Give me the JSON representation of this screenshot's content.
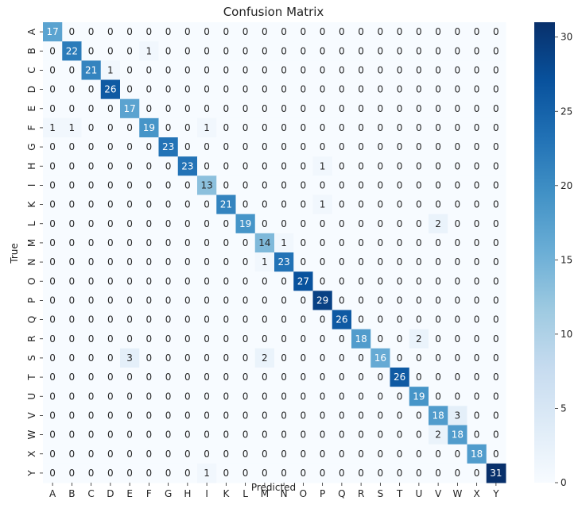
{
  "chart_data": {
    "type": "heatmap",
    "title": "Confusion Matrix",
    "xlabel": "Predicted",
    "ylabel": "True",
    "labels": [
      "A",
      "B",
      "C",
      "D",
      "E",
      "F",
      "G",
      "H",
      "I",
      "K",
      "L",
      "M",
      "N",
      "O",
      "P",
      "Q",
      "R",
      "S",
      "T",
      "U",
      "V",
      "W",
      "X",
      "Y"
    ],
    "matrix": [
      [
        17,
        0,
        0,
        0,
        0,
        0,
        0,
        0,
        0,
        0,
        0,
        0,
        0,
        0,
        0,
        0,
        0,
        0,
        0,
        0,
        0,
        0,
        0,
        0
      ],
      [
        0,
        22,
        0,
        0,
        0,
        1,
        0,
        0,
        0,
        0,
        0,
        0,
        0,
        0,
        0,
        0,
        0,
        0,
        0,
        0,
        0,
        0,
        0,
        0
      ],
      [
        0,
        0,
        21,
        1,
        0,
        0,
        0,
        0,
        0,
        0,
        0,
        0,
        0,
        0,
        0,
        0,
        0,
        0,
        0,
        0,
        0,
        0,
        0,
        0
      ],
      [
        0,
        0,
        0,
        26,
        0,
        0,
        0,
        0,
        0,
        0,
        0,
        0,
        0,
        0,
        0,
        0,
        0,
        0,
        0,
        0,
        0,
        0,
        0,
        0
      ],
      [
        0,
        0,
        0,
        0,
        17,
        0,
        0,
        0,
        0,
        0,
        0,
        0,
        0,
        0,
        0,
        0,
        0,
        0,
        0,
        0,
        0,
        0,
        0,
        0
      ],
      [
        1,
        1,
        0,
        0,
        0,
        19,
        0,
        0,
        1,
        0,
        0,
        0,
        0,
        0,
        0,
        0,
        0,
        0,
        0,
        0,
        0,
        0,
        0,
        0
      ],
      [
        0,
        0,
        0,
        0,
        0,
        0,
        23,
        0,
        0,
        0,
        0,
        0,
        0,
        0,
        0,
        0,
        0,
        0,
        0,
        0,
        0,
        0,
        0,
        0
      ],
      [
        0,
        0,
        0,
        0,
        0,
        0,
        0,
        23,
        0,
        0,
        0,
        0,
        0,
        0,
        1,
        0,
        0,
        0,
        0,
        0,
        0,
        0,
        0,
        0
      ],
      [
        0,
        0,
        0,
        0,
        0,
        0,
        0,
        0,
        13,
        0,
        0,
        0,
        0,
        0,
        0,
        0,
        0,
        0,
        0,
        0,
        0,
        0,
        0,
        0
      ],
      [
        0,
        0,
        0,
        0,
        0,
        0,
        0,
        0,
        0,
        21,
        0,
        0,
        0,
        0,
        1,
        0,
        0,
        0,
        0,
        0,
        0,
        0,
        0,
        0
      ],
      [
        0,
        0,
        0,
        0,
        0,
        0,
        0,
        0,
        0,
        0,
        19,
        0,
        0,
        0,
        0,
        0,
        0,
        0,
        0,
        0,
        2,
        0,
        0,
        0
      ],
      [
        0,
        0,
        0,
        0,
        0,
        0,
        0,
        0,
        0,
        0,
        0,
        14,
        1,
        0,
        0,
        0,
        0,
        0,
        0,
        0,
        0,
        0,
        0,
        0
      ],
      [
        0,
        0,
        0,
        0,
        0,
        0,
        0,
        0,
        0,
        0,
        0,
        1,
        23,
        0,
        0,
        0,
        0,
        0,
        0,
        0,
        0,
        0,
        0,
        0
      ],
      [
        0,
        0,
        0,
        0,
        0,
        0,
        0,
        0,
        0,
        0,
        0,
        0,
        0,
        27,
        0,
        0,
        0,
        0,
        0,
        0,
        0,
        0,
        0,
        0
      ],
      [
        0,
        0,
        0,
        0,
        0,
        0,
        0,
        0,
        0,
        0,
        0,
        0,
        0,
        0,
        29,
        0,
        0,
        0,
        0,
        0,
        0,
        0,
        0,
        0
      ],
      [
        0,
        0,
        0,
        0,
        0,
        0,
        0,
        0,
        0,
        0,
        0,
        0,
        0,
        0,
        0,
        26,
        0,
        0,
        0,
        0,
        0,
        0,
        0,
        0
      ],
      [
        0,
        0,
        0,
        0,
        0,
        0,
        0,
        0,
        0,
        0,
        0,
        0,
        0,
        0,
        0,
        0,
        18,
        0,
        0,
        2,
        0,
        0,
        0,
        0
      ],
      [
        0,
        0,
        0,
        0,
        3,
        0,
        0,
        0,
        0,
        0,
        0,
        2,
        0,
        0,
        0,
        0,
        0,
        16,
        0,
        0,
        0,
        0,
        0,
        0
      ],
      [
        0,
        0,
        0,
        0,
        0,
        0,
        0,
        0,
        0,
        0,
        0,
        0,
        0,
        0,
        0,
        0,
        0,
        0,
        26,
        0,
        0,
        0,
        0,
        0
      ],
      [
        0,
        0,
        0,
        0,
        0,
        0,
        0,
        0,
        0,
        0,
        0,
        0,
        0,
        0,
        0,
        0,
        0,
        0,
        0,
        19,
        0,
        0,
        0,
        0
      ],
      [
        0,
        0,
        0,
        0,
        0,
        0,
        0,
        0,
        0,
        0,
        0,
        0,
        0,
        0,
        0,
        0,
        0,
        0,
        0,
        0,
        18,
        3,
        0,
        0
      ],
      [
        0,
        0,
        0,
        0,
        0,
        0,
        0,
        0,
        0,
        0,
        0,
        0,
        0,
        0,
        0,
        0,
        0,
        0,
        0,
        0,
        2,
        18,
        0,
        0
      ],
      [
        0,
        0,
        0,
        0,
        0,
        0,
        0,
        0,
        0,
        0,
        0,
        0,
        0,
        0,
        0,
        0,
        0,
        0,
        0,
        0,
        0,
        0,
        18,
        0
      ],
      [
        0,
        0,
        0,
        0,
        0,
        0,
        0,
        0,
        1,
        0,
        0,
        0,
        0,
        0,
        0,
        0,
        0,
        0,
        0,
        0,
        0,
        0,
        0,
        31
      ]
    ],
    "colorbar": {
      "min": 0,
      "max": 31,
      "ticks": [
        0,
        5,
        10,
        15,
        20,
        25,
        30
      ]
    },
    "colormap": "Blues",
    "grid": false,
    "legend": "colorbar-right"
  }
}
